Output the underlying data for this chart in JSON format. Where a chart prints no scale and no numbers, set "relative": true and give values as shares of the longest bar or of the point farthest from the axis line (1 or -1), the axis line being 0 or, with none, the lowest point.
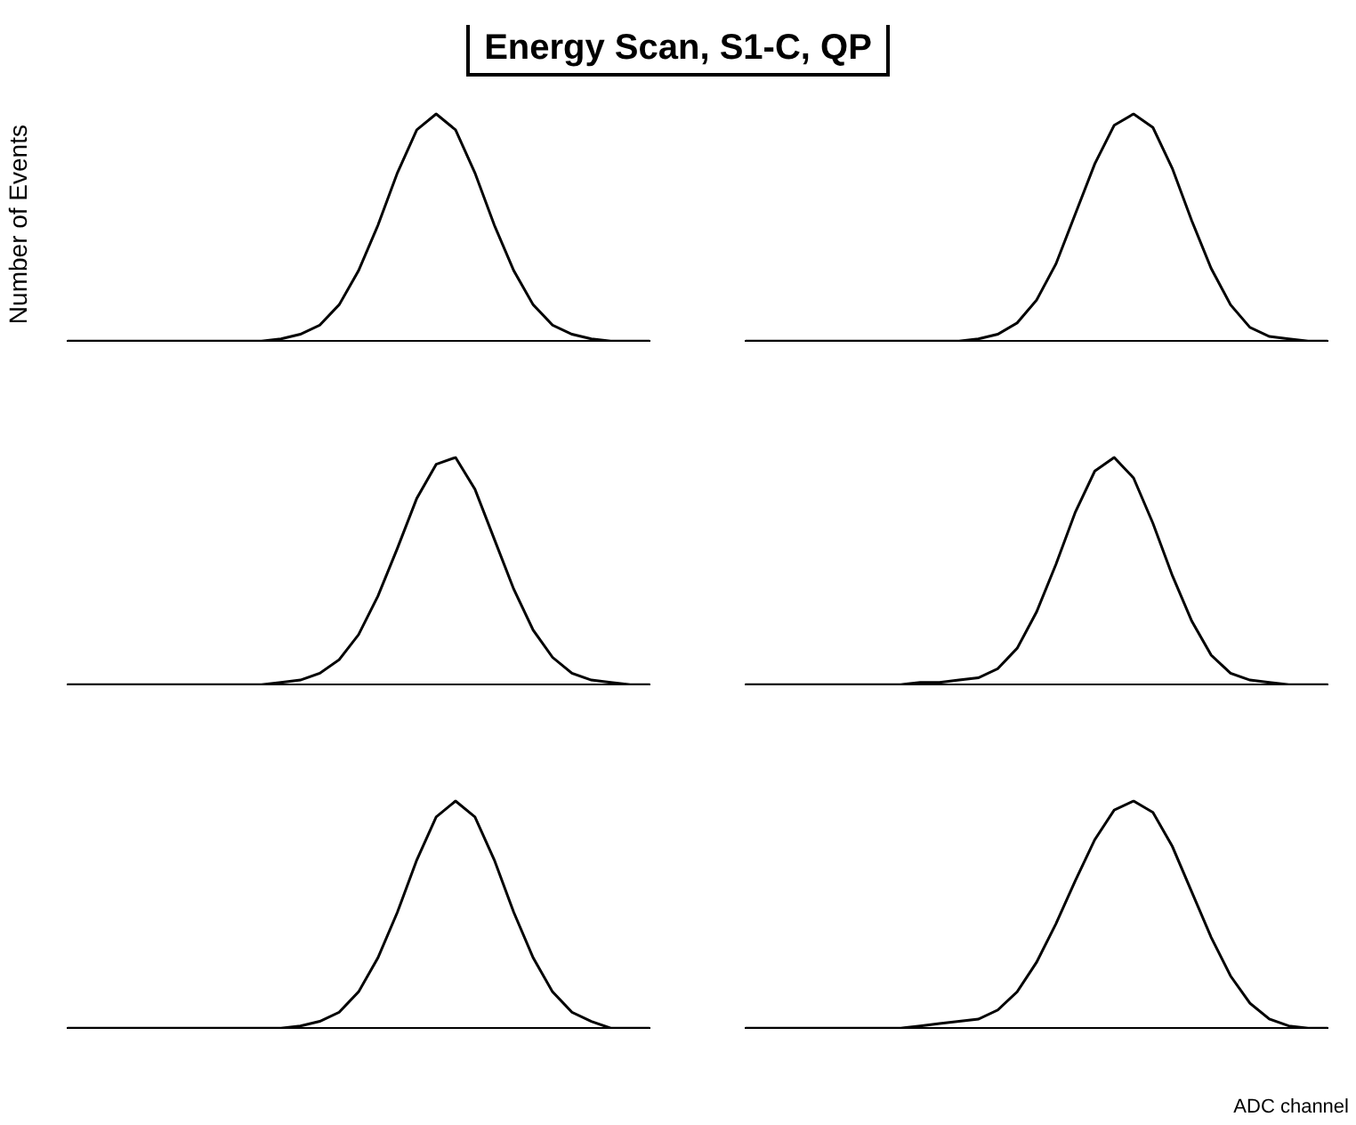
{
  "chart_data": [
    {
      "type": "other",
      "title": "Energy Scan, S1-C, QP"
    },
    {
      "type": "line",
      "ylabel": "Number of Events",
      "relative": true,
      "color": "#000000",
      "categories": [
        null,
        null,
        null,
        null,
        null,
        null,
        null,
        null,
        null,
        null,
        null,
        null,
        null,
        null,
        null,
        null,
        null,
        null,
        null,
        null,
        null,
        null,
        null,
        null,
        null,
        null,
        null,
        null,
        null,
        null,
        null
      ],
      "values": [
        0,
        0,
        0,
        0,
        0,
        0,
        0,
        0,
        0,
        0,
        0,
        0.01,
        0.03,
        0.07,
        0.16,
        0.31,
        0.51,
        0.74,
        0.93,
        1,
        0.93,
        0.74,
        0.51,
        0.31,
        0.16,
        0.07,
        0.03,
        0.01,
        0,
        0,
        0
      ]
    },
    {
      "type": "line",
      "relative": true,
      "color": "#000000",
      "categories": [
        null,
        null,
        null,
        null,
        null,
        null,
        null,
        null,
        null,
        null,
        null,
        null,
        null,
        null,
        null,
        null,
        null,
        null,
        null,
        null,
        null,
        null,
        null,
        null,
        null,
        null,
        null,
        null,
        null,
        null,
        null
      ],
      "values": [
        0,
        0,
        0,
        0,
        0,
        0,
        0,
        0,
        0,
        0,
        0,
        0,
        0.01,
        0.03,
        0.08,
        0.18,
        0.34,
        0.56,
        0.78,
        0.95,
        1,
        0.94,
        0.76,
        0.53,
        0.32,
        0.16,
        0.06,
        0.02,
        0.01,
        0,
        0
      ]
    },
    {
      "type": "line",
      "relative": true,
      "color": "#000000",
      "categories": [
        null,
        null,
        null,
        null,
        null,
        null,
        null,
        null,
        null,
        null,
        null,
        null,
        null,
        null,
        null,
        null,
        null,
        null,
        null,
        null,
        null,
        null,
        null,
        null,
        null,
        null,
        null,
        null,
        null,
        null,
        null
      ],
      "values": [
        0,
        0,
        0,
        0,
        0,
        0,
        0,
        0,
        0,
        0,
        0,
        0.01,
        0.02,
        0.05,
        0.11,
        0.22,
        0.39,
        0.6,
        0.82,
        0.97,
        1,
        0.86,
        0.64,
        0.42,
        0.24,
        0.12,
        0.05,
        0.02,
        0.01,
        0,
        0
      ]
    },
    {
      "type": "line",
      "relative": true,
      "color": "#000000",
      "categories": [
        null,
        null,
        null,
        null,
        null,
        null,
        null,
        null,
        null,
        null,
        null,
        null,
        null,
        null,
        null,
        null,
        null,
        null,
        null,
        null,
        null,
        null,
        null,
        null,
        null,
        null,
        null,
        null,
        null,
        null,
        null
      ],
      "values": [
        0,
        0,
        0,
        0,
        0,
        0,
        0,
        0,
        0,
        0.01,
        0.01,
        0.02,
        0.03,
        0.07,
        0.16,
        0.32,
        0.53,
        0.76,
        0.94,
        1,
        0.91,
        0.71,
        0.48,
        0.28,
        0.13,
        0.05,
        0.02,
        0.01,
        0,
        0,
        0
      ]
    },
    {
      "type": "line",
      "relative": true,
      "color": "#000000",
      "categories": [
        null,
        null,
        null,
        null,
        null,
        null,
        null,
        null,
        null,
        null,
        null,
        null,
        null,
        null,
        null,
        null,
        null,
        null,
        null,
        null,
        null,
        null,
        null,
        null,
        null,
        null,
        null,
        null,
        null,
        null,
        null
      ],
      "values": [
        0,
        0,
        0,
        0,
        0,
        0,
        0,
        0,
        0,
        0,
        0,
        0,
        0.01,
        0.03,
        0.07,
        0.16,
        0.31,
        0.51,
        0.74,
        0.93,
        1,
        0.93,
        0.74,
        0.51,
        0.31,
        0.16,
        0.07,
        0.03,
        0,
        0,
        0
      ]
    },
    {
      "type": "line",
      "xlabel": "ADC channel",
      "relative": true,
      "color": "#000000",
      "categories": [
        null,
        null,
        null,
        null,
        null,
        null,
        null,
        null,
        null,
        null,
        null,
        null,
        null,
        null,
        null,
        null,
        null,
        null,
        null,
        null,
        null,
        null,
        null,
        null,
        null,
        null,
        null,
        null,
        null,
        null,
        null
      ],
      "values": [
        0,
        0,
        0,
        0,
        0,
        0,
        0,
        0,
        0,
        0.01,
        0.02,
        0.03,
        0.04,
        0.08,
        0.16,
        0.29,
        0.46,
        0.65,
        0.83,
        0.96,
        1,
        0.95,
        0.8,
        0.6,
        0.4,
        0.23,
        0.11,
        0.04,
        0.01,
        0,
        0
      ]
    }
  ]
}
